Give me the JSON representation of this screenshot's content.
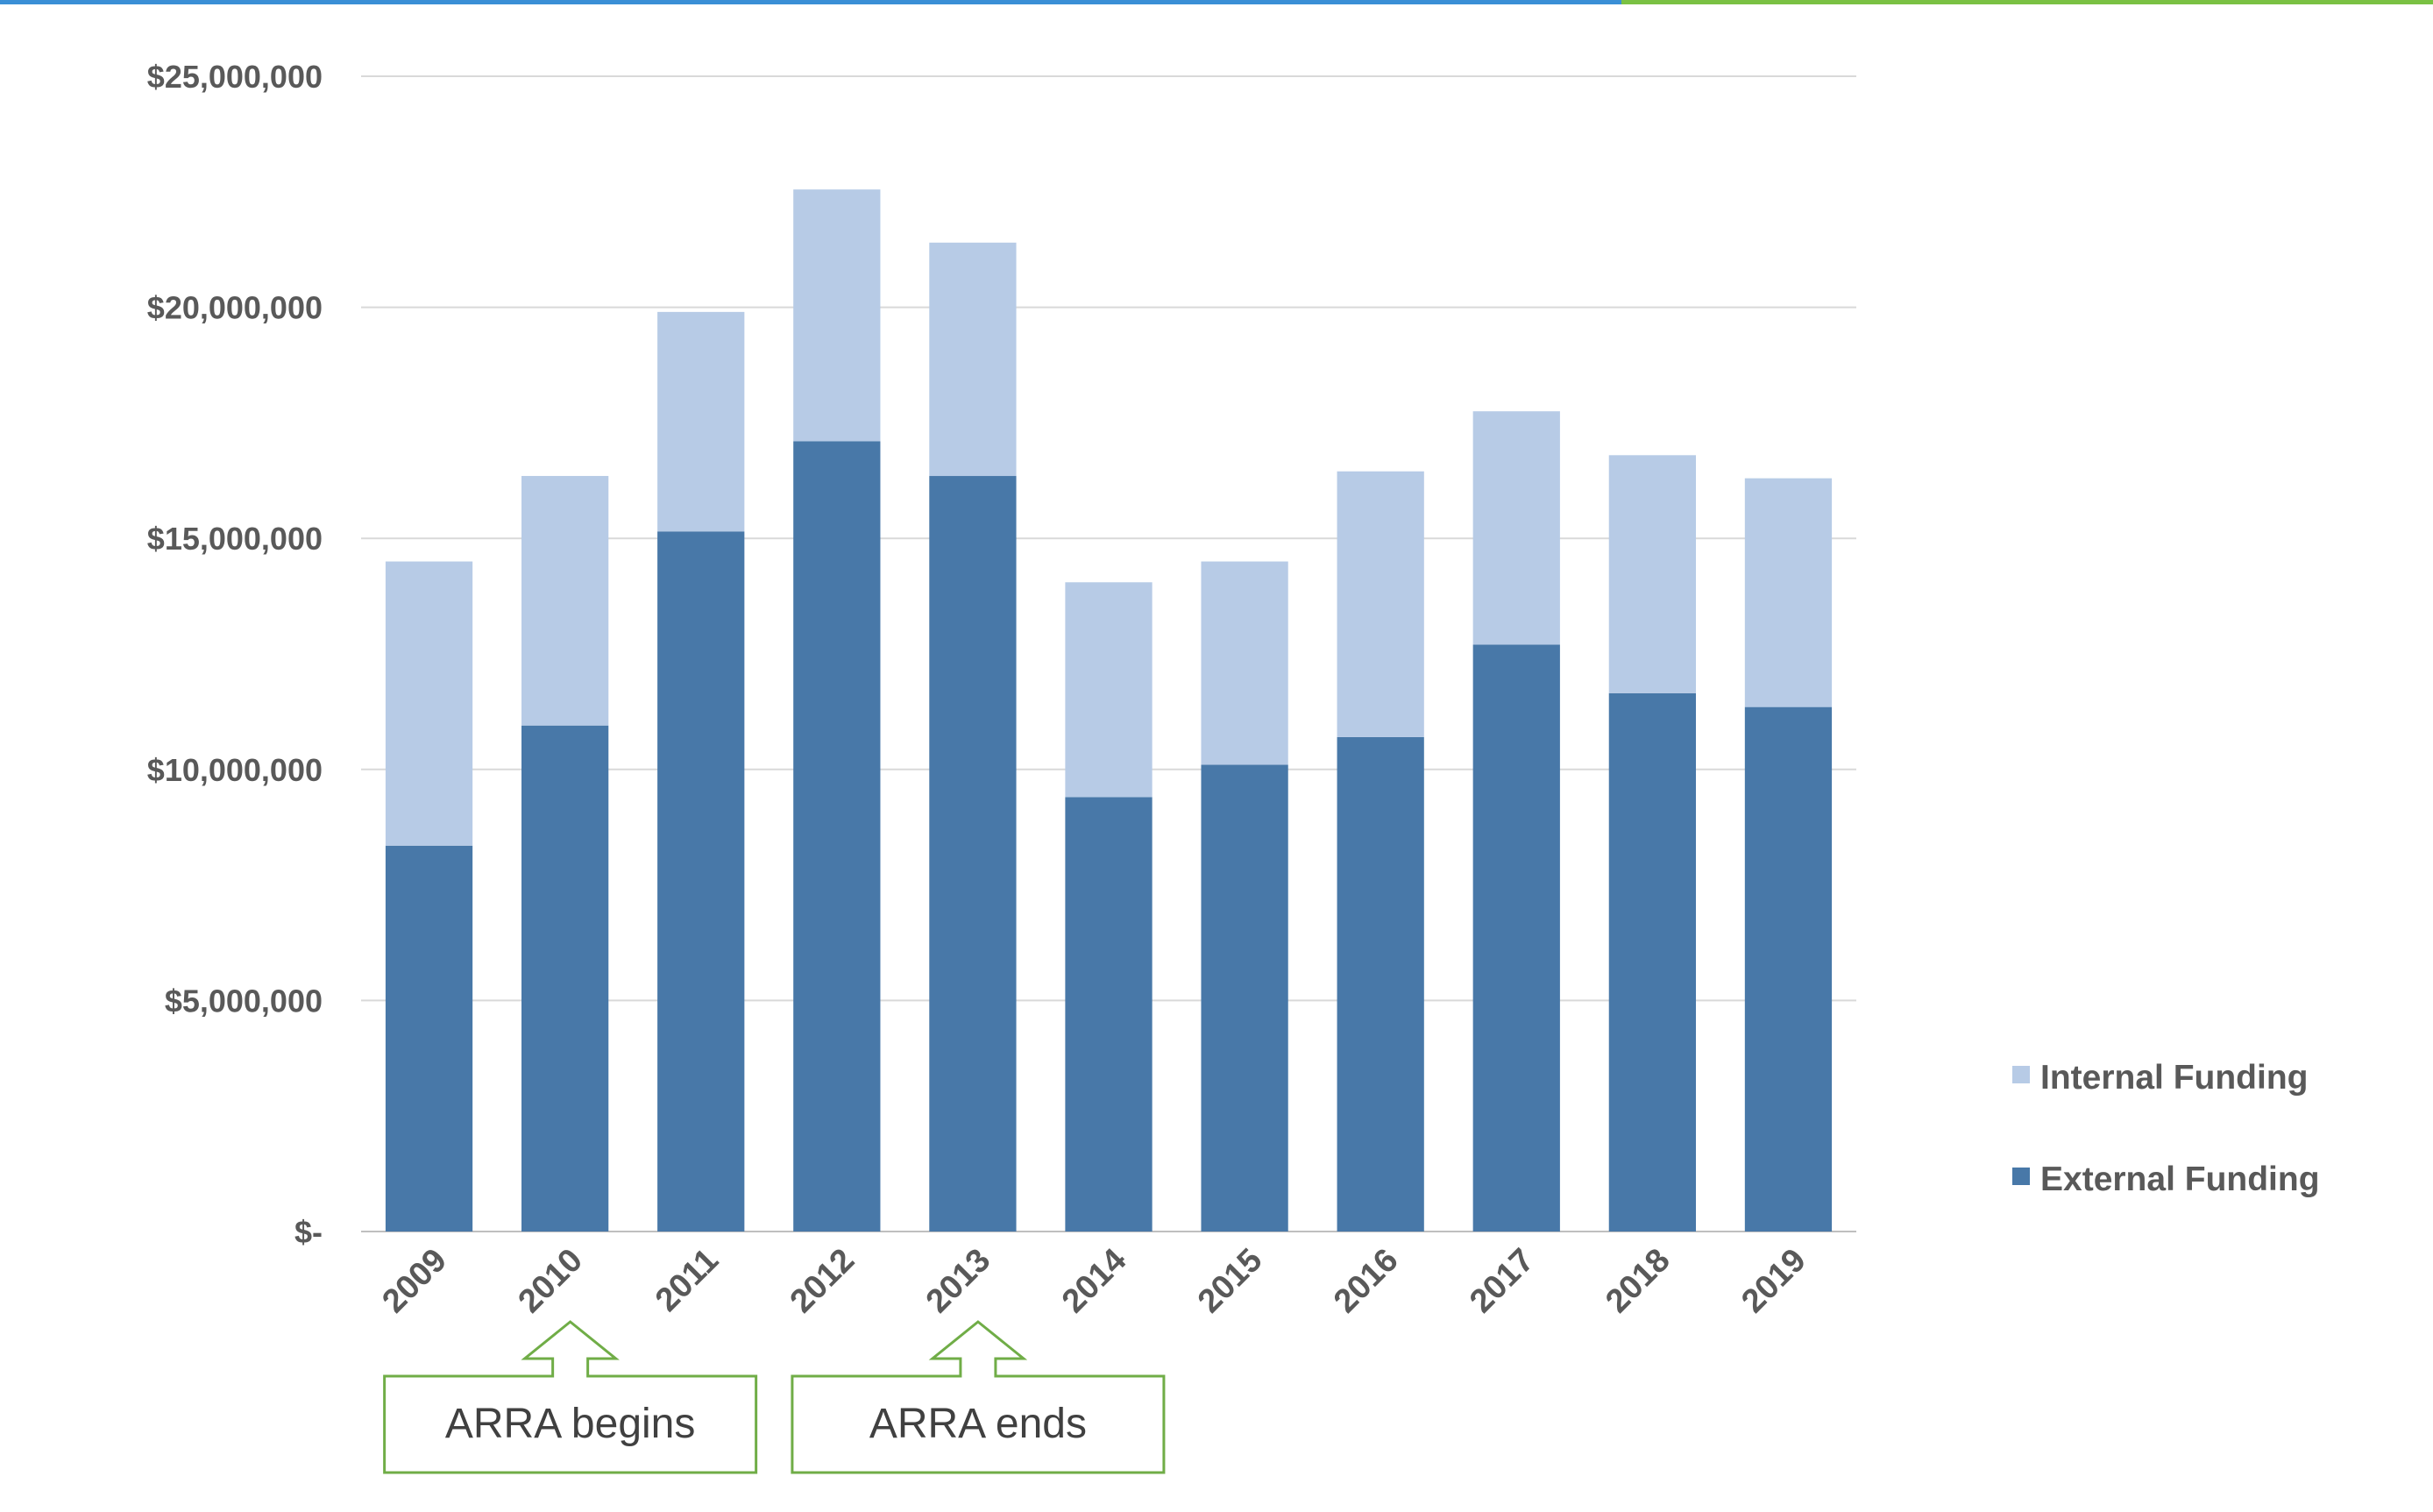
{
  "colors": {
    "external": "#4878a8",
    "internal": "#b7cbe6",
    "gridline": "#d9d9d9",
    "axis_text": "#595959",
    "callout_border": "#70ad47",
    "top_bar_blue": "#3a8fd6",
    "top_bar_green": "#7ac143"
  },
  "chart_data": {
    "type": "bar",
    "stacked": true,
    "title": "",
    "xlabel": "",
    "ylabel": "",
    "categories": [
      "2009",
      "2010",
      "2011",
      "2012",
      "2013",
      "2014",
      "2015",
      "2016",
      "2017",
      "2018",
      "2019"
    ],
    "series": [
      {
        "name": "External Funding",
        "values": [
          8350000,
          10950000,
          15150000,
          17100000,
          16350000,
          9400000,
          10100000,
          10700000,
          12700000,
          11650000,
          11350000
        ]
      },
      {
        "name": "Internal Funding",
        "values": [
          6150000,
          5400000,
          4750000,
          5450000,
          5050000,
          4650000,
          4400000,
          5750000,
          5050000,
          5150000,
          4950000
        ]
      }
    ],
    "ylim": [
      0,
      25000000
    ],
    "yticks": [
      0,
      5000000,
      10000000,
      15000000,
      20000000,
      25000000
    ],
    "ytick_labels": [
      "$-",
      "$5,000,000",
      "$10,000,000",
      "$15,000,000",
      "$20,000,000",
      "$25,000,000"
    ],
    "grid": true,
    "legend_position": "right",
    "legend": [
      "Internal Funding",
      "External Funding"
    ],
    "annotations": [
      {
        "text": "ARRA begins",
        "category": "2010"
      },
      {
        "text": "ARRA ends",
        "category": "2013"
      }
    ]
  }
}
